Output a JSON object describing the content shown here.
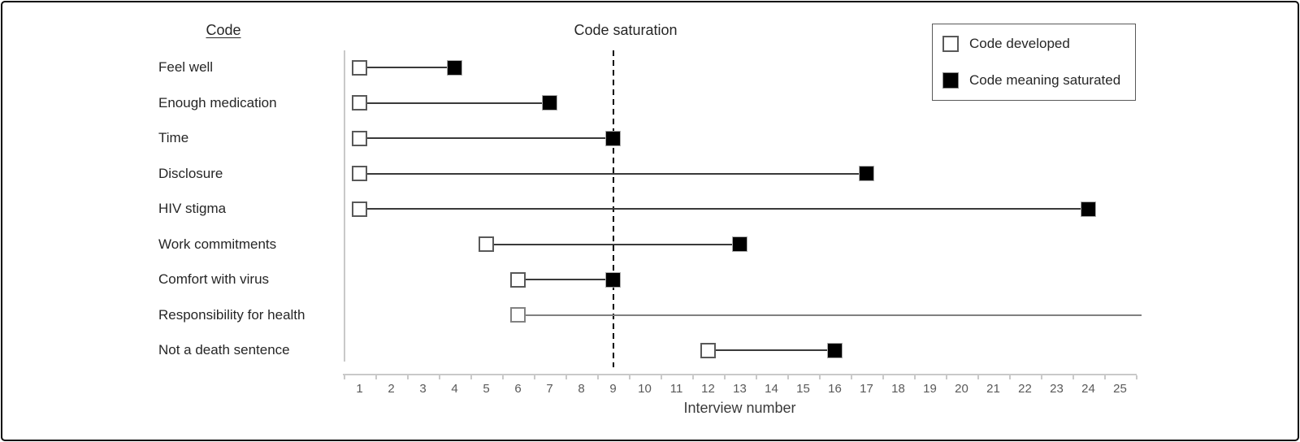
{
  "figure": {
    "column_header": "Code",
    "reference_line_label": "Code saturation",
    "x_axis_title": "Interview number"
  },
  "legend": {
    "position": "top-right",
    "items": [
      {
        "icon": "open-square-icon",
        "label": "Code developed"
      },
      {
        "icon": "filled-square-icon",
        "label": "Code meaning saturated"
      }
    ]
  },
  "colors": {
    "marker_saturated_fill": "#000000",
    "marker_developed_border": "#595959",
    "marker_developed_border_unsaturated_row": "#828282",
    "connector": "#3a3a3a",
    "connector_unsaturated": "#808080",
    "axis_line": "#c9c9c9",
    "tick_label": "#595959",
    "text": "#262626",
    "reference_line": "#000000"
  },
  "chart_data": {
    "type": "scatter",
    "variant": "dumbbell-range-timeline",
    "title": "",
    "xlabel": "Interview number",
    "ylabel": "Code",
    "xlim": [
      1,
      25
    ],
    "x_ticks": [
      1,
      2,
      3,
      4,
      5,
      6,
      7,
      8,
      9,
      10,
      11,
      12,
      13,
      14,
      15,
      16,
      17,
      18,
      19,
      20,
      21,
      22,
      23,
      24,
      25
    ],
    "grid": false,
    "legend_position": "top-right",
    "reference_line": {
      "x": 9,
      "label": "Code saturation",
      "style": "dashed"
    },
    "series_legend": [
      "Code developed",
      "Code meaning saturated"
    ],
    "rows": [
      {
        "code": "Feel well",
        "code_developed": 1,
        "code_meaning_saturated": 4
      },
      {
        "code": "Enough medication",
        "code_developed": 1,
        "code_meaning_saturated": 7
      },
      {
        "code": "Time",
        "code_developed": 1,
        "code_meaning_saturated": 9
      },
      {
        "code": "Disclosure",
        "code_developed": 1,
        "code_meaning_saturated": 17
      },
      {
        "code": "HIV stigma",
        "code_developed": 1,
        "code_meaning_saturated": 24
      },
      {
        "code": "Work commitments",
        "code_developed": 5,
        "code_meaning_saturated": 13
      },
      {
        "code": "Comfort with virus",
        "code_developed": 6,
        "code_meaning_saturated": 9
      },
      {
        "code": "Responsibility for health",
        "code_developed": 6,
        "code_meaning_saturated": null,
        "line_extends_beyond_axis": true
      },
      {
        "code": "Not a death sentence",
        "code_developed": 12,
        "code_meaning_saturated": 16
      }
    ]
  }
}
